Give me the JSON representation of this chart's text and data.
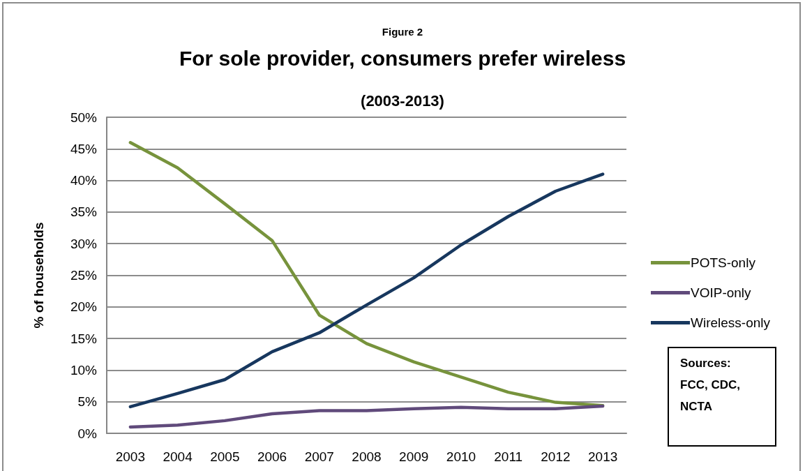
{
  "chart_data": {
    "type": "line",
    "title": "For sole provider, consumers prefer wireless",
    "subtitle": "(2003-2013)",
    "ylabel": "% of households",
    "annotations": [
      "Figure 2",
      "Sources: FCC, CDC, NCTA"
    ],
    "categories": [
      "2003",
      "2004",
      "2005",
      "2006",
      "2007",
      "2008",
      "2009",
      "2010",
      "2011",
      "2012",
      "2013"
    ],
    "series": [
      {
        "name": "POTS-only",
        "color": "#77933c",
        "values": [
          46,
          42,
          36.3,
          30.5,
          18.7,
          14.2,
          11.3,
          8.9,
          6.5,
          4.9,
          4.4
        ]
      },
      {
        "name": "VOIP-only",
        "color": "#604a7b",
        "values": [
          1.0,
          1.3,
          2.0,
          3.1,
          3.6,
          3.6,
          3.9,
          4.1,
          3.9,
          3.9,
          4.3
        ]
      },
      {
        "name": "Wireless-only",
        "color": "#17375e",
        "values": [
          4.2,
          6.3,
          8.5,
          12.9,
          15.9,
          20.3,
          24.6,
          29.8,
          34.3,
          38.3,
          41.0
        ]
      }
    ],
    "ylim": [
      0,
      50
    ],
    "yticks": [
      {
        "value": 0,
        "label": "0%"
      },
      {
        "value": 5,
        "label": "5%"
      },
      {
        "value": 10,
        "label": "10%"
      },
      {
        "value": 15,
        "label": "15%"
      },
      {
        "value": 20,
        "label": "20%"
      },
      {
        "value": 25,
        "label": "25%"
      },
      {
        "value": 30,
        "label": "30%"
      },
      {
        "value": 35,
        "label": "35%"
      },
      {
        "value": 40,
        "label": "40%"
      },
      {
        "value": 45,
        "label": "45%"
      },
      {
        "value": 50,
        "label": "50%"
      }
    ],
    "grid": "y",
    "legend": "right",
    "marker": "none",
    "line_style": "solid"
  }
}
